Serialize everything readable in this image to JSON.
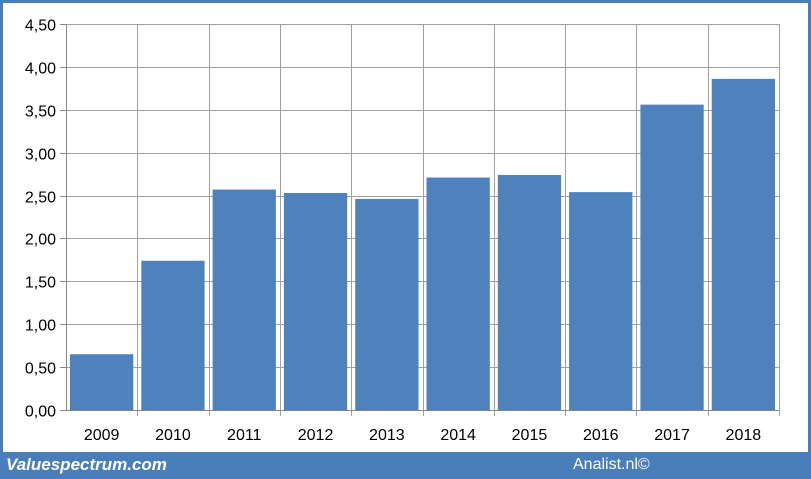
{
  "chart_data": {
    "type": "bar",
    "categories": [
      "2009",
      "2010",
      "2011",
      "2012",
      "2013",
      "2014",
      "2015",
      "2016",
      "2017",
      "2018"
    ],
    "values": [
      0.65,
      1.74,
      2.57,
      2.53,
      2.46,
      2.71,
      2.74,
      2.54,
      3.56,
      3.86
    ],
    "ylim": [
      0,
      4.5
    ],
    "yticks": [
      "0,00",
      "0,50",
      "1,00",
      "1,50",
      "2,00",
      "2,50",
      "3,00",
      "3,50",
      "4,00",
      "4,50"
    ],
    "ytick_values": [
      0,
      0.5,
      1,
      1.5,
      2,
      2.5,
      3,
      3.5,
      4,
      4.5
    ],
    "grid": true,
    "bar_color": "#4f81bd"
  },
  "footer": {
    "brand_left": "Valuespectrum.com",
    "brand_right": "Analist.nl©"
  },
  "colors": {
    "frame": "#4a7ebb",
    "grid": "#a0a0a0",
    "axis": "#868686"
  }
}
